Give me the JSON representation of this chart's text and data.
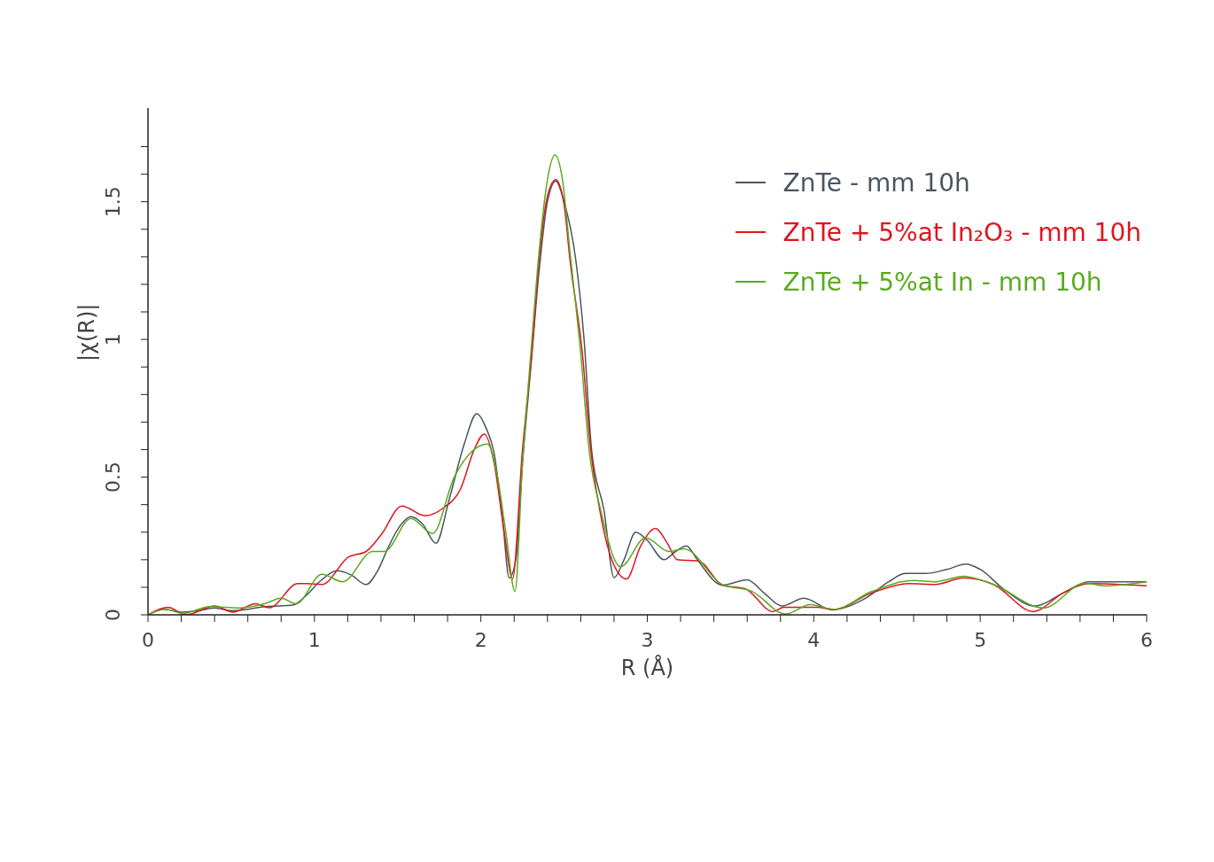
{
  "chart_data": {
    "type": "line",
    "xlabel": "R (Å)",
    "ylabel": "|χ(R)|",
    "xlim": [
      0,
      6
    ],
    "ylim": [
      0,
      1.84
    ],
    "xticks": [
      0,
      {
        "value": 0.2,
        "label": null
      },
      {
        "value": 0.4,
        "label": null
      },
      {
        "value": 0.6,
        "label": null
      },
      {
        "value": 0.8,
        "label": null
      },
      1,
      {
        "value": 1.2,
        "label": null
      },
      {
        "value": 1.4,
        "label": null
      },
      {
        "value": 1.6,
        "label": null
      },
      {
        "value": 1.8,
        "label": null
      },
      2,
      {
        "value": 2.2,
        "label": null
      },
      {
        "value": 2.4,
        "label": null
      },
      {
        "value": 2.6,
        "label": null
      },
      {
        "value": 2.8,
        "label": null
      },
      3,
      {
        "value": 3.2,
        "label": null
      },
      {
        "value": 3.4,
        "label": null
      },
      {
        "value": 3.6,
        "label": null
      },
      {
        "value": 3.8,
        "label": null
      },
      4,
      {
        "value": 4.2,
        "label": null
      },
      {
        "value": 4.4,
        "label": null
      },
      {
        "value": 4.6,
        "label": null
      },
      {
        "value": 4.8,
        "label": null
      },
      5,
      {
        "value": 5.2,
        "label": null
      },
      {
        "value": 5.4,
        "label": null
      },
      {
        "value": 5.6,
        "label": null
      },
      {
        "value": 5.8,
        "label": null
      },
      6
    ],
    "yticks": [
      0,
      {
        "value": 0.1,
        "label": null
      },
      {
        "value": 0.2,
        "label": null
      },
      {
        "value": 0.3,
        "label": null
      },
      {
        "value": 0.4,
        "label": null
      },
      0.5,
      {
        "value": 0.6,
        "label": null
      },
      {
        "value": 0.7,
        "label": null
      },
      {
        "value": 0.8,
        "label": null
      },
      {
        "value": 0.9,
        "label": null
      },
      1,
      {
        "value": 1.1,
        "label": null
      },
      {
        "value": 1.2,
        "label": null
      },
      {
        "value": 1.3,
        "label": null
      },
      {
        "value": 1.4,
        "label": null
      },
      1.5,
      {
        "value": 1.6,
        "label": null
      },
      {
        "value": 1.7,
        "label": null
      }
    ],
    "grid": false,
    "legend": "top right",
    "marker": "none",
    "line_style": "solid",
    "series": [
      {
        "name": "ZnTe - mm 10h",
        "color": "#4a5560",
        "x": [
          0,
          0.1,
          0.2,
          0.3,
          0.4,
          0.5,
          0.6,
          0.7,
          0.87,
          0.95,
          1.03,
          1.14,
          1.22,
          1.31,
          1.38,
          1.44,
          1.5,
          1.58,
          1.65,
          1.73,
          1.81,
          1.9,
          1.975,
          2.03,
          2.08,
          2.13,
          2.17,
          2.21,
          2.25,
          2.3,
          2.35,
          2.4,
          2.45,
          2.5,
          2.57,
          2.62,
          2.665,
          2.74,
          2.8,
          2.86,
          2.93,
          3.0,
          3.1,
          3.17,
          3.235,
          3.3,
          3.45,
          3.6,
          3.7,
          3.81,
          3.94,
          4.11,
          4.31,
          4.45,
          4.55,
          4.67,
          4.8,
          4.915,
          5.0,
          5.14,
          5.33,
          5.5,
          5.65,
          5.8,
          6.0
        ],
        "values": [
          0,
          0.02,
          0.01,
          0.015,
          0.025,
          0.015,
          0.02,
          0.03,
          0.035,
          0.07,
          0.12,
          0.16,
          0.145,
          0.11,
          0.16,
          0.24,
          0.31,
          0.356,
          0.33,
          0.26,
          0.42,
          0.62,
          0.73,
          0.68,
          0.585,
          0.35,
          0.134,
          0.2,
          0.55,
          0.9,
          1.25,
          1.5,
          1.575,
          1.5,
          1.29,
          1.0,
          0.6,
          0.378,
          0.135,
          0.2,
          0.3,
          0.27,
          0.2,
          0.23,
          0.25,
          0.2,
          0.108,
          0.127,
          0.08,
          0.032,
          0.06,
          0.018,
          0.06,
          0.12,
          0.15,
          0.15,
          0.165,
          0.184,
          0.165,
          0.094,
          0.032,
          0.08,
          0.12,
          0.12,
          0.12
        ]
      },
      {
        "name": "ZnTe + 5%at In₂O₃ - mm 10h",
        "color": "#e0141e",
        "x": [
          0,
          0.12,
          0.23,
          0.4,
          0.51,
          0.645,
          0.73,
          0.9,
          0.955,
          1.045,
          1.205,
          1.31,
          1.4,
          1.525,
          1.665,
          1.77,
          1.88,
          1.96,
          2.02,
          2.08,
          2.14,
          2.19,
          2.25,
          2.306,
          2.35,
          2.4,
          2.45,
          2.5,
          2.535,
          2.61,
          2.66,
          2.715,
          2.8,
          2.875,
          2.96,
          3.05,
          3.12,
          3.18,
          3.31,
          3.45,
          3.59,
          3.755,
          3.82,
          4.02,
          4.12,
          4.35,
          4.57,
          4.73,
          4.9,
          5.08,
          5.32,
          5.5,
          5.65,
          6.0
        ],
        "values": [
          0,
          0.027,
          0,
          0.032,
          0.01,
          0.04,
          0.026,
          0.113,
          0.113,
          0.11,
          0.21,
          0.23,
          0.29,
          0.395,
          0.36,
          0.386,
          0.46,
          0.6,
          0.656,
          0.55,
          0.3,
          0.13,
          0.6,
          0.948,
          1.29,
          1.52,
          1.58,
          1.49,
          1.29,
          0.948,
          0.6,
          0.378,
          0.18,
          0.13,
          0.25,
          0.314,
          0.26,
          0.2,
          0.195,
          0.108,
          0.094,
          0.012,
          0.027,
          0.027,
          0.02,
          0.08,
          0.113,
          0.11,
          0.134,
          0.11,
          0.012,
          0.08,
          0.113,
          0.105
        ]
      },
      {
        "name": "ZnTe + 5%at In - mm 10h",
        "color": "#5aab1e",
        "x": [
          0,
          0.105,
          0.21,
          0.37,
          0.55,
          0.7,
          0.8,
          0.89,
          1.045,
          1.17,
          1.35,
          1.42,
          1.58,
          1.71,
          1.84,
          2.04,
          2.1,
          2.15,
          2.205,
          2.25,
          2.3,
          2.35,
          2.4,
          2.445,
          2.49,
          2.535,
          2.6,
          2.65,
          2.72,
          2.84,
          2.99,
          3.13,
          3.22,
          3.45,
          3.63,
          3.83,
          3.98,
          4.12,
          4.35,
          4.6,
          4.73,
          4.9,
          5.08,
          5.38,
          5.63,
          5.75,
          6.0
        ],
        "values": [
          0,
          0.02,
          0.005,
          0.03,
          0.025,
          0.04,
          0.06,
          0.04,
          0.147,
          0.12,
          0.23,
          0.23,
          0.35,
          0.295,
          0.5,
          0.62,
          0.5,
          0.3,
          0.085,
          0.55,
          0.948,
          1.32,
          1.58,
          1.67,
          1.58,
          1.32,
          0.948,
          0.6,
          0.38,
          0.175,
          0.28,
          0.23,
          0.24,
          0.11,
          0.085,
          0.003,
          0.037,
          0.02,
          0.085,
          0.125,
          0.12,
          0.14,
          0.11,
          0.025,
          0.115,
          0.105,
          0.12
        ]
      }
    ]
  }
}
